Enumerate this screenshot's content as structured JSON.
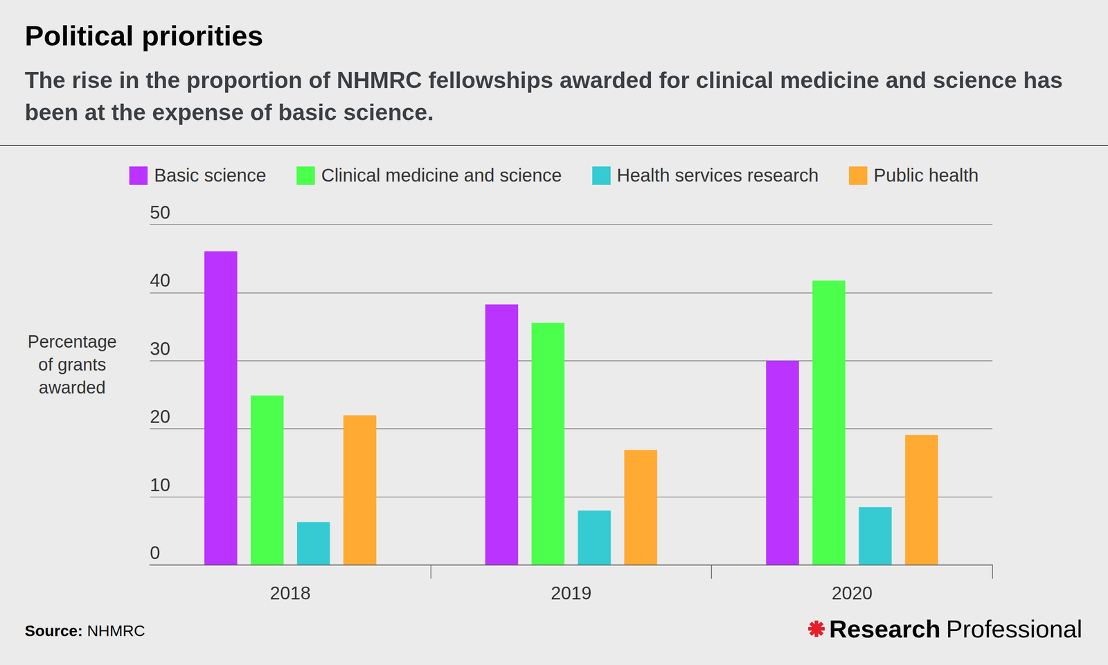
{
  "chart_data": {
    "type": "bar",
    "title": "Political priorities",
    "subtitle": "The rise in the proportion of NHMRC fellowships awarded for clinical medicine and science has been at the expense of basic science.",
    "ylabel": [
      "Percentage",
      "of grants",
      "awarded"
    ],
    "categories": [
      "2018",
      "2019",
      "2020"
    ],
    "series": [
      {
        "name": "Basic science",
        "color": "#bb33ff",
        "values": [
          46.1,
          38.3,
          30.0
        ]
      },
      {
        "name": "Clinical medicine and science",
        "color": "#4cff4c",
        "values": [
          24.9,
          35.6,
          41.8
        ]
      },
      {
        "name": "Health services research",
        "color": "#36cbd3",
        "values": [
          6.3,
          8.0,
          8.5
        ]
      },
      {
        "name": "Public health",
        "color": "#ffaa33",
        "values": [
          22.0,
          16.9,
          19.1
        ]
      }
    ],
    "ylim": [
      0,
      50
    ],
    "yticks": [
      0,
      10,
      20,
      30,
      40,
      50
    ],
    "grid": true,
    "legend": "top",
    "source_label": "Source:",
    "source": "NHMRC",
    "credit": [
      "Research",
      "Professional"
    ]
  }
}
